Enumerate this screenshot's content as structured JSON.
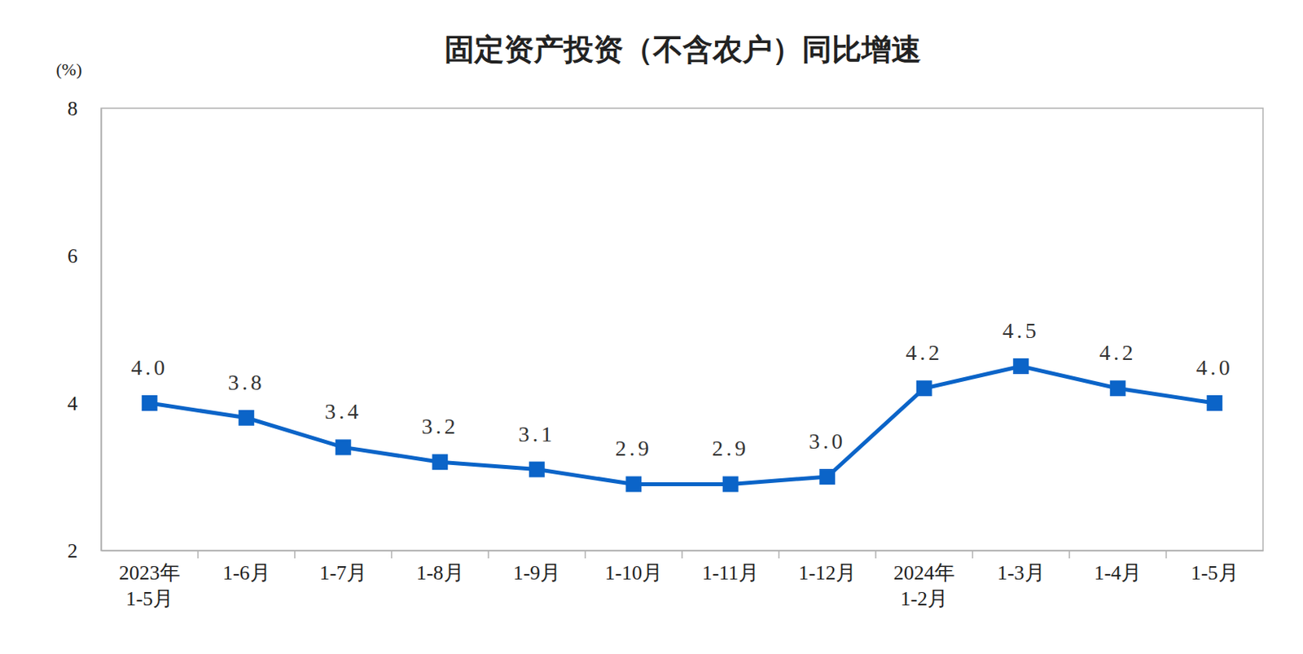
{
  "chart_data": {
    "type": "line",
    "title": "固定资产投资（不含农户）同比增速",
    "ylabel": "(%)",
    "categories": [
      "2023年\n1-5月",
      "1-6月",
      "1-7月",
      "1-8月",
      "1-9月",
      "1-10月",
      "1-11月",
      "1-12月",
      "2024年\n1-2月",
      "1-3月",
      "1-4月",
      "1-5月"
    ],
    "values": [
      4.0,
      3.8,
      3.4,
      3.2,
      3.1,
      2.9,
      2.9,
      3.0,
      4.2,
      4.5,
      4.2,
      4.0
    ],
    "value_labels": [
      "4.0",
      "3.8",
      "3.4",
      "3.2",
      "3.1",
      "2.9",
      "2.9",
      "3.0",
      "4.2",
      "4.5",
      "4.2",
      "4.0"
    ],
    "color": "#0b64c8",
    "marker": "square",
    "ylim": [
      2,
      8
    ],
    "yticks": [
      2,
      4,
      6,
      8
    ],
    "grid": false,
    "data_labels": true
  }
}
